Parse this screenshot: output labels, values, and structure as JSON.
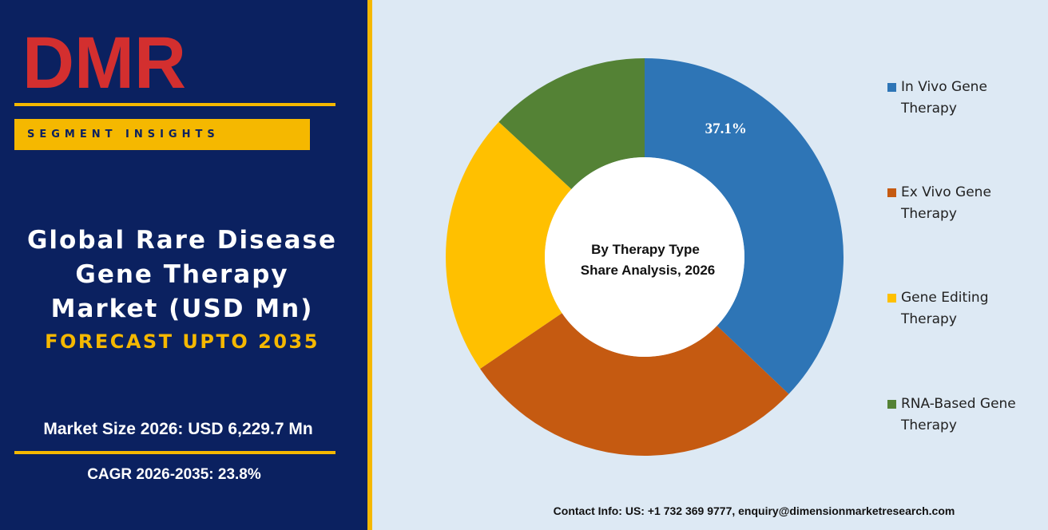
{
  "brand": {
    "logo_text": "DMR"
  },
  "sidebar": {
    "segment_label": "SEGMENT INSIGHTS",
    "title_lines": [
      "Global Rare Disease",
      "Gene Therapy",
      "Market (USD Mn)"
    ],
    "forecast": "FORECAST UPTO 2035",
    "market_size": "Market Size 2026: USD 6,229.7 Mn",
    "cagr": "CAGR 2026-2035: 23.8%"
  },
  "chart_data": {
    "type": "pie",
    "title_lines": [
      "By Therapy Type",
      "Share Analysis, 2026"
    ],
    "legend_position": "right",
    "slices": [
      {
        "name": "In Vivo Gene Therapy",
        "legend_lines": [
          "In Vivo Gene",
          "Therapy"
        ],
        "value": 37.1,
        "label": "37.1%",
        "color": "#2e75b6"
      },
      {
        "name": "Ex Vivo Gene Therapy",
        "legend_lines": [
          "Ex Vivo Gene",
          "Therapy"
        ],
        "value": 28.4,
        "label": "",
        "color": "#c55a11"
      },
      {
        "name": "Gene Editing Therapy",
        "legend_lines": [
          "Gene Editing",
          "Therapy"
        ],
        "value": 21.4,
        "label": "",
        "color": "#ffc000"
      },
      {
        "name": "RNA-Based Gene Therapy",
        "legend_lines": [
          "RNA-Based Gene",
          "Therapy"
        ],
        "value": 13.1,
        "label": "",
        "color": "#548235"
      }
    ]
  },
  "footer": {
    "contact": "Contact Info: US: +1 732 369 9777, enquiry@dimensionmarketresearch.com"
  },
  "colors": {
    "navy": "#0b2160",
    "gold": "#f5b800",
    "panel": "#dde9f4"
  }
}
